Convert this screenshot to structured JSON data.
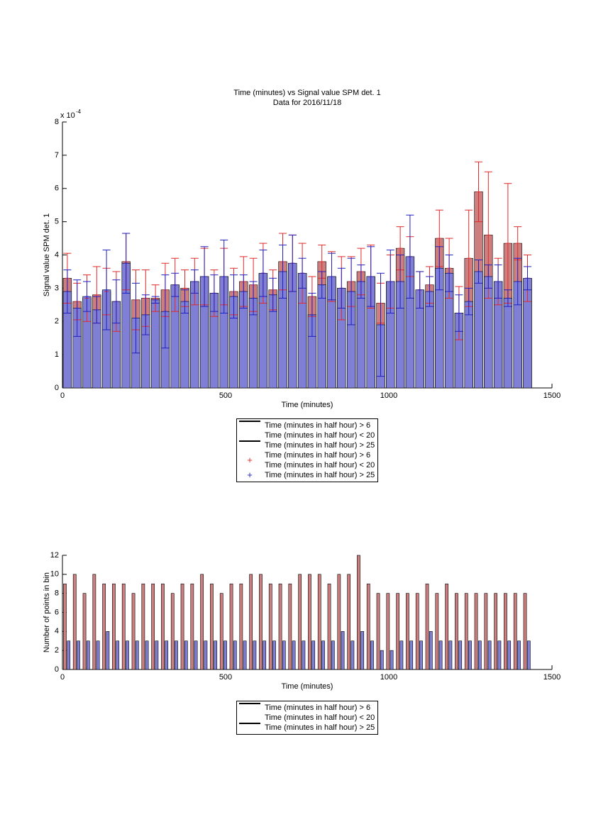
{
  "chart_data": [
    {
      "type": "bar",
      "barmode": "overlay",
      "title": "Time (minutes) vs Signal value SPM det. 1",
      "subtitle": "Data for 2016/11/18",
      "xlabel": "Time (minutes)",
      "ylabel": "Signal value SPM det. 1",
      "y_multiplier": {
        "base": "x 10",
        "exponent": "-4"
      },
      "x": [
        15,
        45,
        75,
        105,
        135,
        165,
        195,
        225,
        255,
        285,
        315,
        345,
        375,
        405,
        435,
        465,
        495,
        525,
        555,
        585,
        615,
        645,
        675,
        705,
        735,
        765,
        795,
        825,
        855,
        885,
        915,
        945,
        975,
        1005,
        1035,
        1065,
        1095,
        1125,
        1155,
        1185,
        1215,
        1245,
        1275,
        1305,
        1335,
        1365,
        1395,
        1425
      ],
      "xlim": [
        0,
        1500
      ],
      "xticks": [
        0,
        500,
        1000,
        1500
      ],
      "ylim": [
        0,
        8
      ],
      "yticks": [
        0,
        1,
        2,
        3,
        4,
        5,
        6,
        7,
        8
      ],
      "legend": "southoutside",
      "series": [
        {
          "name": "Time (minutes in half hour) > 6\nTime (minutes in half hour) < 20",
          "error_name": "Time (minutes in half hour) > 6\nTime (minutes in half hour) < 20",
          "color": "#cd7f7f",
          "error_color": "#e02a2a",
          "values": [
            3.3,
            2.6,
            2.7,
            2.8,
            2.9,
            2.6,
            3.8,
            2.65,
            2.7,
            2.7,
            2.95,
            3.1,
            3.0,
            3.2,
            3.35,
            2.85,
            3.35,
            2.9,
            3.2,
            3.1,
            3.45,
            2.95,
            3.8,
            3.75,
            3.45,
            2.75,
            3.8,
            3.35,
            3.0,
            3.2,
            3.5,
            3.35,
            2.55,
            3.2,
            4.2,
            3.95,
            2.95,
            3.1,
            4.5,
            3.6,
            2.25,
            3.9,
            5.9,
            4.6,
            3.2,
            4.35,
            4.35,
            3.3
          ],
          "errors": [
            0.75,
            0.55,
            0.7,
            0.85,
            0.7,
            0.9,
            0.85,
            0.9,
            0.85,
            0.4,
            0.8,
            0.8,
            0.55,
            0.7,
            0.85,
            0.7,
            0.85,
            0.7,
            0.75,
            0.8,
            0.9,
            0.6,
            0.85,
            0.85,
            0.9,
            0.6,
            0.5,
            0.75,
            0.95,
            0.75,
            0.7,
            0.95,
            0.6,
            0.8,
            0.65,
            0.6,
            0.55,
            0.55,
            0.85,
            0.9,
            0.8,
            1.45,
            0.9,
            1.9,
            0.7,
            1.8,
            0.5,
            0.7
          ]
        },
        {
          "name": "Time (minutes in half hour) > 25",
          "error_name": "Time (minutes in half hour) > 25",
          "color": "#7f7fd6",
          "error_color": "#2020c0",
          "values": [
            2.9,
            2.4,
            2.75,
            2.35,
            2.95,
            2.6,
            3.75,
            2.1,
            2.2,
            2.65,
            2.3,
            3.1,
            2.6,
            3.2,
            3.35,
            2.85,
            3.35,
            2.75,
            2.9,
            2.7,
            3.45,
            2.8,
            3.5,
            3.75,
            3.45,
            2.2,
            3.1,
            3.35,
            3.0,
            2.9,
            3.2,
            3.35,
            1.9,
            3.2,
            3.2,
            3.95,
            2.95,
            2.9,
            3.6,
            3.45,
            2.25,
            2.6,
            3.5,
            3.35,
            3.2,
            2.7,
            3.2,
            3.3
          ],
          "errors": [
            0.65,
            0.85,
            0.45,
            0.4,
            1.2,
            0.65,
            0.9,
            1.05,
            0.6,
            0.1,
            1.1,
            0.35,
            0.35,
            0.35,
            0.9,
            0.55,
            1.1,
            0.65,
            0.5,
            0.5,
            0.7,
            0.5,
            0.8,
            0.85,
            0.45,
            0.65,
            0.4,
            0.7,
            0.6,
            1.0,
            0.5,
            0.9,
            1.55,
            0.95,
            0.8,
            1.25,
            0.55,
            0.45,
            0.65,
            0.55,
            0.55,
            0.4,
            0.35,
            0.35,
            0.5,
            0.25,
            0.7,
            0.35
          ]
        }
      ]
    },
    {
      "type": "bar",
      "barmode": "group",
      "xlabel": "Time (minutes)",
      "ylabel": "Number of points in bin",
      "x": [
        15,
        45,
        75,
        105,
        135,
        165,
        195,
        225,
        255,
        285,
        315,
        345,
        375,
        405,
        435,
        465,
        495,
        525,
        555,
        585,
        615,
        645,
        675,
        705,
        735,
        765,
        795,
        825,
        855,
        885,
        915,
        945,
        975,
        1005,
        1035,
        1065,
        1095,
        1125,
        1155,
        1185,
        1215,
        1245,
        1275,
        1305,
        1335,
        1365,
        1395,
        1425
      ],
      "xlim": [
        0,
        1500
      ],
      "xticks": [
        0,
        500,
        1000,
        1500
      ],
      "ylim": [
        0,
        12
      ],
      "yticks": [
        0,
        2,
        4,
        6,
        8,
        10,
        12
      ],
      "legend": "southoutside",
      "series": [
        {
          "name": "Time (minutes in half hour) > 6\nTime (minutes in half hour) < 20",
          "color": "#cd7f7f",
          "values": [
            9,
            10,
            8,
            10,
            9,
            9,
            9,
            8,
            9,
            9,
            9,
            8,
            9,
            9,
            10,
            9,
            8,
            9,
            9,
            10,
            10,
            9,
            9,
            9,
            10,
            10,
            10,
            9,
            10,
            10,
            12,
            9,
            8,
            8,
            8,
            8,
            8,
            9,
            8,
            9,
            8,
            8,
            8,
            8,
            8,
            8,
            8,
            8
          ]
        },
        {
          "name": "Time (minutes in half hour) > 25",
          "color": "#7f7fd6",
          "values": [
            3,
            3,
            3,
            3,
            4,
            3,
            3,
            3,
            3,
            3,
            3,
            3,
            3,
            3,
            3,
            3,
            3,
            3,
            3,
            3,
            3,
            3,
            3,
            3,
            3,
            3,
            3,
            3,
            4,
            3,
            4,
            3,
            2,
            2,
            3,
            3,
            3,
            4,
            3,
            3,
            3,
            3,
            3,
            3,
            3,
            3,
            3,
            3
          ]
        }
      ]
    }
  ]
}
